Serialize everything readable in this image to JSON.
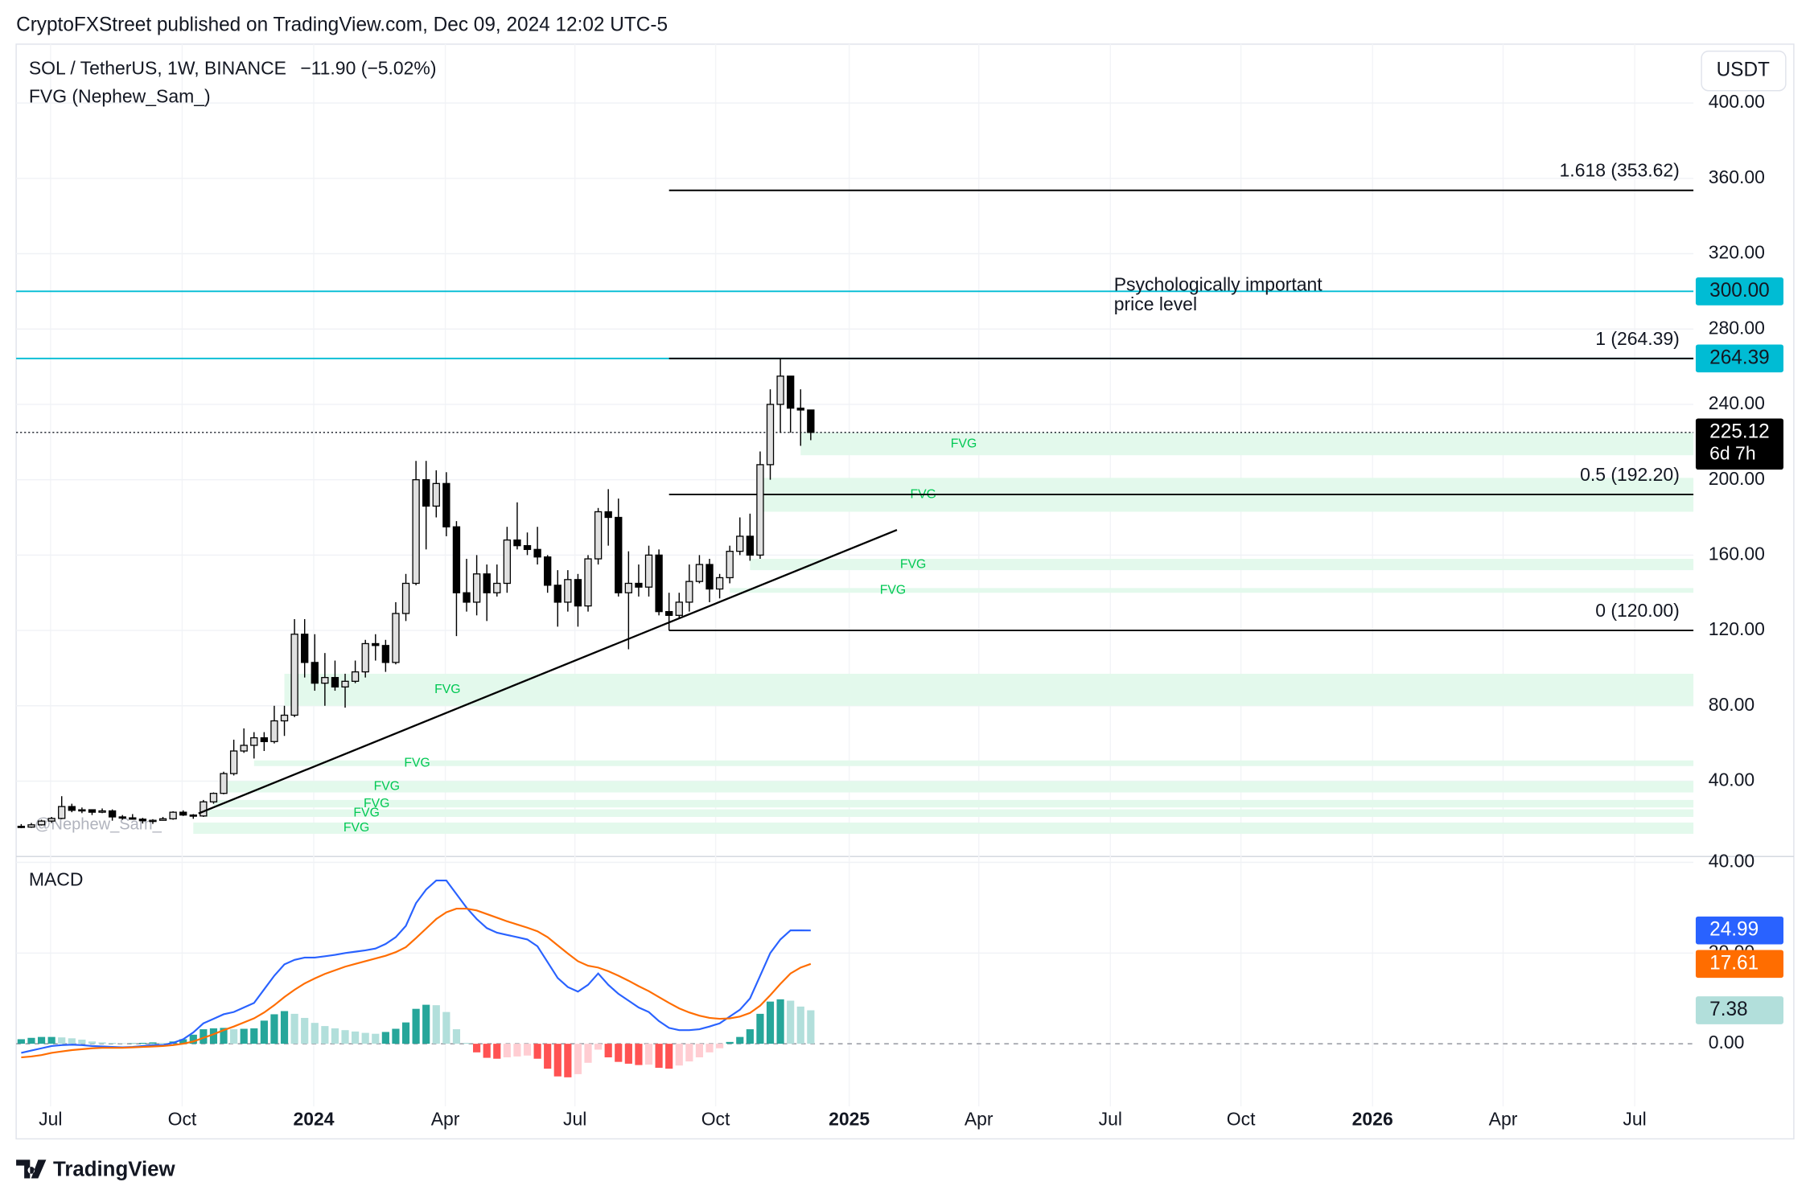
{
  "page": {
    "publisher": "CryptoFXStreet published on TradingView.com, Dec 09, 2024 12:02 UTC-5",
    "brand": "TradingView"
  },
  "chart_data": [
    {
      "type": "candlestick",
      "title": "SOL / TetherUS, 1W, BINANCE",
      "change": "−11.90 (−5.02%)",
      "indicator": "FVG (Nephew_Sam_)",
      "currency": "USDT",
      "watermark": "@Nephew_Sam_",
      "up_color": "#e0e0e0",
      "down_color": "#000000",
      "open": [
        16,
        15.6,
        16.8,
        18.8,
        20.2,
        26.5,
        24.5,
        24.8,
        23.5,
        24.2,
        21,
        20.5,
        19.8,
        19,
        19.2,
        20,
        23.5,
        22,
        21.5,
        29,
        33.5,
        44,
        56,
        59,
        63,
        61,
        72,
        75,
        118,
        103,
        92,
        95,
        90,
        93,
        98,
        113,
        112,
        103,
        129,
        145,
        200,
        186,
        198,
        175,
        140,
        135,
        150,
        140,
        145,
        168,
        165,
        163,
        159,
        144,
        135,
        147,
        133,
        158,
        183,
        180,
        140,
        145,
        143,
        160,
        130,
        128,
        135,
        146,
        155,
        142,
        148,
        162,
        170,
        160,
        208,
        240,
        255,
        238,
        237.02
      ],
      "high": [
        17.2,
        17.8,
        19.5,
        21,
        32,
        28,
        26,
        25,
        25.5,
        25,
        22,
        22.5,
        20.5,
        19.8,
        21,
        24,
        24.5,
        22.5,
        30,
        34,
        45,
        62,
        68,
        66,
        66,
        80,
        80,
        126,
        126,
        118,
        108,
        104,
        97,
        104,
        115,
        118,
        115,
        135,
        150,
        210,
        210,
        205,
        204,
        178,
        158,
        160,
        155,
        155,
        175,
        188,
        172,
        175,
        160,
        152,
        152,
        150,
        160,
        185,
        195,
        190,
        162,
        155,
        165,
        163,
        140,
        140,
        155,
        160,
        158,
        150,
        165,
        180,
        182,
        215,
        248,
        264.39,
        255,
        248,
        237.02
      ],
      "low": [
        15,
        15.2,
        16.4,
        17.8,
        19.8,
        23.5,
        23,
        22,
        23,
        19,
        19.5,
        19.5,
        17.5,
        17.3,
        19,
        19.5,
        21.5,
        20,
        21,
        28,
        33,
        43,
        55,
        52,
        56,
        60,
        64,
        74,
        95,
        88,
        80,
        88,
        79,
        92,
        95,
        104,
        98,
        102,
        125,
        144,
        163,
        180,
        170,
        117,
        130,
        128,
        125,
        138,
        140,
        163,
        160,
        155,
        140,
        122,
        130,
        122,
        130,
        155,
        165,
        138,
        110,
        138,
        138,
        128,
        120,
        126,
        130,
        145,
        135,
        137,
        145,
        160,
        157,
        158,
        200,
        225,
        225,
        218,
        221
      ],
      "close": [
        15.6,
        16.8,
        18.8,
        20.2,
        26.5,
        24.5,
        24.8,
        23.5,
        24.2,
        21,
        20.5,
        19.8,
        19,
        19.2,
        20,
        23.5,
        22,
        21.5,
        29,
        33.5,
        44,
        56,
        59,
        63,
        61,
        72,
        75,
        118,
        103,
        92,
        95,
        90,
        93,
        98,
        113,
        112,
        103,
        129,
        145,
        200,
        186,
        198,
        175,
        140,
        135,
        150,
        140,
        145,
        168,
        165,
        163,
        159,
        144,
        135,
        147,
        133,
        158,
        183,
        180,
        140,
        145,
        143,
        160,
        130,
        128,
        135,
        146,
        155,
        142,
        148,
        162,
        170,
        160,
        208,
        240,
        255,
        238,
        237.02,
        225.12
      ],
      "xlim": [
        -0.5,
        165.2
      ],
      "xticks": [
        {
          "value": 2.9,
          "label": "Jul"
        },
        {
          "value": 15.9,
          "label": "Oct"
        },
        {
          "value": 28.9,
          "label": "2024"
        },
        {
          "value": 41.9,
          "label": "Apr"
        },
        {
          "value": 54.7,
          "label": "Jul"
        },
        {
          "value": 68.6,
          "label": "Oct"
        },
        {
          "value": 81.8,
          "label": "2025"
        },
        {
          "value": 94.6,
          "label": "Apr"
        },
        {
          "value": 107.6,
          "label": "Jul"
        },
        {
          "value": 120.5,
          "label": "Oct"
        },
        {
          "value": 133.5,
          "label": "2026"
        },
        {
          "value": 146.4,
          "label": "Apr"
        },
        {
          "value": 159.4,
          "label": "Jul"
        }
      ],
      "ylim": [
        0,
        430
      ],
      "yticks": [
        {
          "value": 40,
          "label": "40.00"
        },
        {
          "value": 80,
          "label": "80.00"
        },
        {
          "value": 120,
          "label": "120.00"
        },
        {
          "value": 160,
          "label": "160.00"
        },
        {
          "value": 200,
          "label": "200.00"
        },
        {
          "value": 240,
          "label": "240.00"
        },
        {
          "value": 280,
          "label": "280.00"
        },
        {
          "value": 320,
          "label": "320.00"
        },
        {
          "value": 360,
          "label": "360.00"
        },
        {
          "value": 400,
          "label": "400.00"
        }
      ],
      "grid": true,
      "levels": [
        {
          "value": 300,
          "label": "300.00",
          "color": "#00bcd4"
        },
        {
          "value": 264.39,
          "label": "264.39",
          "color": "#00bcd4"
        }
      ],
      "last": {
        "value": 225.12,
        "label": "225.12",
        "countdown": "6d 7h"
      },
      "fib": {
        "start": 64,
        "color": "#000000",
        "lines": [
          {
            "value": 353.62,
            "label": "1.618 (353.62)"
          },
          {
            "value": 264.39,
            "label": "1 (264.39)"
          },
          {
            "value": 192.2,
            "label": "0.5 (192.20)"
          },
          {
            "value": 120,
            "label": "0 (120.00)"
          }
        ]
      },
      "annotation": [
        "Psychologically important",
        "price level"
      ],
      "fvg_color": "#e3f9ec",
      "fvg_label_color": "#00c853",
      "fvg": [
        {
          "label": "FVG",
          "low": 213,
          "high": 225,
          "start": 77
        },
        {
          "label": "FVG",
          "low": 183,
          "high": 201,
          "start": 73
        },
        {
          "label": "FVG",
          "low": 152,
          "high": 158,
          "start": 72
        },
        {
          "label": "FVG",
          "low": 140,
          "high": 142.5,
          "start": 70
        },
        {
          "label": "FVG",
          "low": 80,
          "high": 97,
          "start": 26
        },
        {
          "label": "FVG",
          "low": 48,
          "high": 51,
          "start": 23
        },
        {
          "label": "FVG",
          "low": 34,
          "high": 40,
          "start": 20
        },
        {
          "label": "FVG",
          "low": 26,
          "high": 30,
          "start": 19
        },
        {
          "label": "FVG",
          "low": 21,
          "high": 25,
          "start": 18
        },
        {
          "label": "FVG",
          "low": 12,
          "high": 18,
          "start": 17
        }
      ]
    },
    {
      "type": "macd",
      "title": "MACD",
      "ylim": [
        -13.8,
        41.3
      ],
      "yticks": [
        {
          "value": 0,
          "label": "0.00"
        },
        {
          "value": 20,
          "label": "20.00"
        },
        {
          "value": 40,
          "label": "40.00"
        }
      ],
      "series": [
        {
          "color": "#2962ff",
          "last_label": "24.99",
          "values": [
            -2,
            -1.5,
            -1,
            -0.5,
            -0.3,
            -0.2,
            -0.3,
            -0.5,
            -0.6,
            -0.7,
            -0.8,
            -0.7,
            -0.5,
            -0.3,
            -0.3,
            0.2,
            1,
            2.5,
            4.5,
            5.5,
            6.5,
            7,
            8,
            9,
            12,
            15,
            17.5,
            18.5,
            19,
            19,
            19.3,
            19.6,
            20,
            20.3,
            20.6,
            21,
            22,
            23.5,
            26,
            31,
            34,
            36,
            36,
            33,
            30,
            27.5,
            25.5,
            24.5,
            24,
            23.5,
            23,
            21.5,
            18,
            14.5,
            12.5,
            11.5,
            13,
            15.5,
            13,
            11,
            9.5,
            8,
            7,
            5,
            3.5,
            3,
            3,
            3.2,
            3.8,
            4.5,
            6,
            7.5,
            10,
            15,
            20,
            23,
            25,
            25,
            24.99
          ]
        },
        {
          "color": "#ff6d00",
          "last_label": "17.61",
          "values": [
            -3,
            -2.8,
            -2.5,
            -2,
            -1.7,
            -1.4,
            -1.2,
            -1,
            -0.9,
            -0.9,
            -0.9,
            -0.8,
            -0.7,
            -0.6,
            -0.5,
            -0.3,
            0,
            0.5,
            1.3,
            2.1,
            3,
            3.8,
            4.7,
            5.6,
            6.9,
            8.5,
            10.3,
            11.9,
            13.3,
            14.4,
            15.4,
            16.2,
            17,
            17.6,
            18.2,
            18.8,
            19.4,
            20.2,
            21.3,
            23.3,
            25.4,
            27.5,
            29,
            29.8,
            29.8,
            29.4,
            28.6,
            27.8,
            27,
            26.3,
            25.6,
            24.8,
            23.5,
            21.7,
            19.9,
            18.2,
            17.2,
            16.8,
            16,
            15,
            13.9,
            12.7,
            11.6,
            10.3,
            9,
            7.8,
            6.9,
            6.2,
            5.7,
            5.5,
            5.6,
            6,
            6.8,
            8.4,
            10.7,
            13.2,
            15.5,
            16.8,
            17.61
          ]
        }
      ],
      "histogram": {
        "last_label": "7.38",
        "colors": [
          "#26a69a",
          "#b2dfdb",
          "#ff5252",
          "#ffcdd2"
        ],
        "values": [
          1,
          1.3,
          1.5,
          1.5,
          1.4,
          1.2,
          0.9,
          0.5,
          0.3,
          0.2,
          0.1,
          0.1,
          0.2,
          0.3,
          0.2,
          0.5,
          1,
          2,
          3.2,
          3.4,
          3.5,
          3.2,
          3.3,
          3.4,
          5.1,
          6.5,
          7.2,
          6.6,
          5.7,
          4.6,
          3.9,
          3.4,
          3,
          2.7,
          2.4,
          2.2,
          2.6,
          3.3,
          4.7,
          7.7,
          8.6,
          8.5,
          7,
          3.2,
          0.2,
          -1.9,
          -3.1,
          -3.3,
          -3,
          -2.8,
          -2.6,
          -3.3,
          -5.5,
          -7.2,
          -7.4,
          -6.7,
          -4.2,
          -1.3,
          -3,
          -4,
          -4.4,
          -4.7,
          -4.6,
          -5.3,
          -5.5,
          -4.8,
          -3.9,
          -3,
          -1.9,
          -1,
          0.4,
          1.5,
          3.2,
          6.6,
          9.3,
          9.8,
          9.5,
          8.2,
          7.38
        ]
      }
    }
  ]
}
